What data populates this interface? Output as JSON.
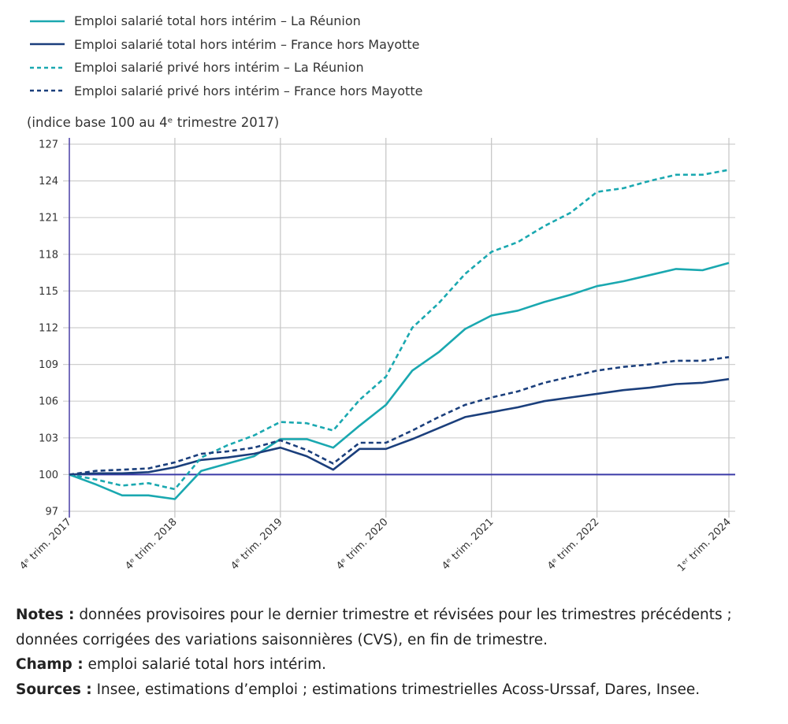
{
  "chart_data": {
    "type": "line",
    "title": "",
    "ylabel": "(indice base 100 au 4ᵉ trimestre 2017)",
    "xlabel": "",
    "ylim": [
      97,
      127
    ],
    "yticks": [
      127,
      124,
      121,
      118,
      115,
      112,
      109,
      106,
      103,
      100,
      97
    ],
    "grid": true,
    "legend_position": "top-left",
    "x_quarters": [
      "2017T4",
      "2018T1",
      "2018T2",
      "2018T3",
      "2018T4",
      "2019T1",
      "2019T2",
      "2019T3",
      "2019T4",
      "2020T1",
      "2020T2",
      "2020T3",
      "2020T4",
      "2021T1",
      "2021T2",
      "2021T3",
      "2021T4",
      "2022T1",
      "2022T2",
      "2022T3",
      "2022T4",
      "2023T1",
      "2023T2",
      "2023T3",
      "2023T4",
      "2024T1"
    ],
    "xtick_labels": [
      {
        "index": 0,
        "label": "4ᵉ trim. 2017"
      },
      {
        "index": 4,
        "label": "4ᵉ trim. 2018"
      },
      {
        "index": 8,
        "label": "4ᵉ trim. 2019"
      },
      {
        "index": 12,
        "label": "4ᵉ trim. 2020"
      },
      {
        "index": 16,
        "label": "4ᵉ trim. 2021"
      },
      {
        "index": 20,
        "label": "4ᵉ trim. 2022"
      },
      {
        "index": 25,
        "label": "1ᵉʳ trim. 2024"
      }
    ],
    "series": [
      {
        "name": "Emploi salarié total hors intérim – La Réunion",
        "color": "#1aa8b0",
        "dashed": false,
        "values": [
          100,
          99.2,
          98.3,
          98.3,
          98.0,
          100.3,
          100.9,
          101.5,
          102.9,
          102.9,
          102.2,
          104.0,
          105.7,
          108.5,
          110.0,
          111.9,
          113.0,
          113.4,
          114.1,
          114.7,
          115.4,
          115.8,
          116.3,
          116.8,
          116.7,
          117.3
        ]
      },
      {
        "name": "Emploi salarié total hors intérim – France hors Mayotte",
        "color": "#1b3f7c",
        "dashed": false,
        "values": [
          100,
          100.1,
          100.1,
          100.2,
          100.6,
          101.2,
          101.4,
          101.7,
          102.2,
          101.5,
          100.4,
          102.1,
          102.1,
          102.9,
          103.8,
          104.7,
          105.1,
          105.5,
          106.0,
          106.3,
          106.6,
          106.9,
          107.1,
          107.4,
          107.5,
          107.8
        ]
      },
      {
        "name": "Emploi salarié privé hors intérim – La Réunion",
        "color": "#1aa8b0",
        "dashed": true,
        "values": [
          100,
          99.6,
          99.1,
          99.3,
          98.8,
          101.4,
          102.4,
          103.2,
          104.3,
          104.2,
          103.6,
          106.1,
          108.0,
          112.0,
          114.0,
          116.4,
          118.2,
          119.0,
          120.3,
          121.4,
          123.1,
          123.4,
          124.0,
          124.5,
          124.5,
          124.9
        ]
      },
      {
        "name": "Emploi salarié privé hors intérim – France hors Mayotte",
        "color": "#1b3f7c",
        "dashed": true,
        "values": [
          100,
          100.3,
          100.4,
          100.5,
          101.0,
          101.7,
          101.9,
          102.2,
          102.8,
          102.0,
          100.9,
          102.6,
          102.6,
          103.6,
          104.7,
          105.7,
          106.3,
          106.8,
          107.5,
          108.0,
          108.5,
          108.8,
          109.0,
          109.3,
          109.3,
          109.6
        ]
      }
    ],
    "reference_line": 100,
    "reference_color": "#3b3aa8"
  },
  "notes": {
    "notes_label": "Notes :",
    "notes_text": " données provisoires pour le dernier trimestre et révisées pour les trimestres précédents ; données corrigées des variations saisonnières (CVS), en fin de trimestre.",
    "champ_label": "Champ :",
    "champ_text": " emploi salarié total hors intérim.",
    "sources_label": "Sources :",
    "sources_text": " Insee, estimations d’emploi ; estimations trimestrielles Acoss-Urssaf, Dares, Insee."
  }
}
